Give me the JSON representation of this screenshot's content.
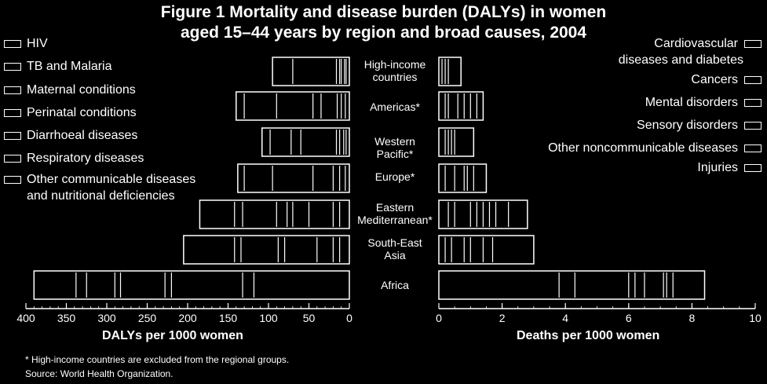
{
  "chart_data": {
    "type": "bar",
    "title_line1": "Figure 1 Mortality and disease burden (DALYs) in women",
    "title_line2": "aged 15–44 years by region and broad causes, 2004",
    "regions": [
      {
        "label": [
          "High-income",
          "countries"
        ]
      },
      {
        "label": [
          "Americas*"
        ]
      },
      {
        "label": [
          "Western",
          "Pacific*"
        ]
      },
      {
        "label": [
          "Europe*"
        ]
      },
      {
        "label": [
          "Eastern",
          "Mediterranean*"
        ]
      },
      {
        "label": [
          "South-East",
          "Asia"
        ]
      },
      {
        "label": [
          "Africa"
        ]
      }
    ],
    "left_legend": [
      "HIV",
      "TB and Malaria",
      "Maternal conditions",
      "Perinatal conditions",
      "Diarrhoeal diseases",
      "Respiratory diseases",
      "Other communicable diseases",
      "and nutritional deficiencies"
    ],
    "right_legend": [
      "Cardiovascular",
      "diseases and diabetes",
      "Cancers",
      "Mental disorders",
      "Sensory disorders",
      "Other noncommunicable diseases",
      "Injuries"
    ],
    "dalys": {
      "xlabel": "DALYs per 1000 women",
      "xlim": [
        0,
        400
      ],
      "ticks": [
        "400",
        "350",
        "300",
        "250",
        "200",
        "150",
        "100",
        "50",
        "0"
      ],
      "segment_boundaries": [
        [
          0,
          4,
          6,
          10,
          12,
          16,
          70,
          95
        ],
        [
          0,
          5,
          10,
          15,
          35,
          45,
          90,
          130,
          140
        ],
        [
          0,
          4,
          7,
          12,
          16,
          60,
          72,
          98,
          108
        ],
        [
          0,
          5,
          12,
          20,
          45,
          95,
          130,
          138
        ],
        [
          0,
          12,
          20,
          50,
          70,
          77,
          90,
          132,
          142,
          185
        ],
        [
          0,
          12,
          20,
          40,
          80,
          88,
          134,
          142,
          205
        ],
        [
          0,
          118,
          132,
          220,
          228,
          283,
          290,
          325,
          338,
          390
        ]
      ]
    },
    "deaths": {
      "xlabel": "Deaths per 1000 women",
      "xlim": [
        0,
        10
      ],
      "ticks": [
        "0",
        "2",
        "4",
        "6",
        "8",
        "10"
      ],
      "segment_boundaries": [
        [
          0,
          0.1,
          0.2,
          0.3,
          0.7
        ],
        [
          0,
          0.2,
          0.3,
          0.6,
          0.8,
          1.0,
          1.2,
          1.4
        ],
        [
          0,
          0.2,
          0.3,
          0.4,
          0.5,
          1.1
        ],
        [
          0,
          0.2,
          0.5,
          0.8,
          0.9,
          1.1,
          1.5
        ],
        [
          0,
          0.3,
          0.5,
          1.0,
          1.2,
          1.4,
          1.6,
          1.8,
          2.2,
          2.8
        ],
        [
          0,
          0.2,
          0.4,
          0.8,
          1.0,
          1.4,
          1.7,
          3.0
        ],
        [
          0,
          3.8,
          4.3,
          6.0,
          6.2,
          6.5,
          7.1,
          7.2,
          7.4,
          8.4
        ]
      ]
    }
  },
  "footnote": "* High-income countries are excluded from the regional groups.",
  "source": "Source: World Health Organization."
}
